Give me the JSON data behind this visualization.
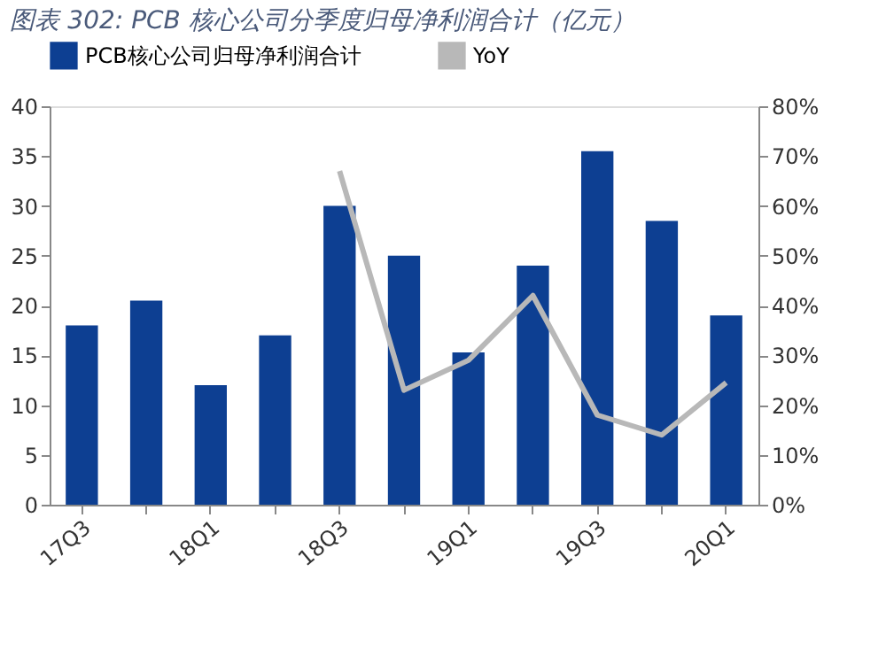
{
  "chart_data": {
    "type": "bar",
    "title": "图表 302: PCB 核心公司分季度归母净利润合计（亿元）",
    "categories": [
      "17Q3",
      null,
      "18Q1",
      null,
      "18Q3",
      null,
      "19Q1",
      null,
      "19Q3",
      null,
      "20Q1"
    ],
    "series": [
      {
        "name": "PCB核心公司归母净利润合计",
        "color": "#0d3f92",
        "values": [
          18,
          20.5,
          12,
          17,
          30,
          25,
          15.3,
          24,
          35.5,
          28.5,
          19
        ]
      },
      {
        "name": "YoY",
        "type": "line",
        "axis": "y2",
        "color": "#b8b8b8",
        "values": [
          null,
          null,
          null,
          null,
          67,
          23,
          29,
          42,
          18,
          14,
          24.5
        ]
      }
    ],
    "ylim": [
      0,
      40
    ],
    "yticks": [
      0,
      5,
      10,
      15,
      20,
      25,
      30,
      35,
      40
    ],
    "y2lim": [
      0,
      80
    ],
    "y2ticks": [
      {
        "value": 0,
        "label": "0%"
      },
      {
        "value": 10,
        "label": "10%"
      },
      {
        "value": 20,
        "label": "20%"
      },
      {
        "value": 30,
        "label": "30%"
      },
      {
        "value": 40,
        "label": "40%"
      },
      {
        "value": 50,
        "label": "50%"
      },
      {
        "value": 60,
        "label": "60%"
      },
      {
        "value": 70,
        "label": "70%"
      },
      {
        "value": 80,
        "label": "80%"
      }
    ],
    "grid": false,
    "legend": "top"
  }
}
